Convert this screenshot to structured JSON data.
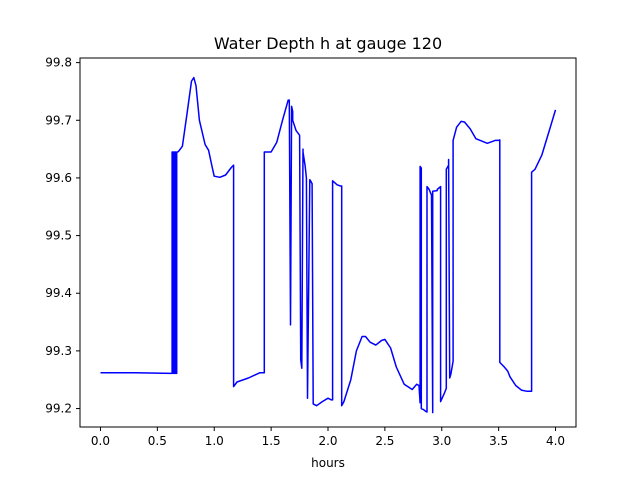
{
  "chart_data": {
    "type": "line",
    "title": "Water Depth h at gauge 120",
    "xlabel": "hours",
    "ylabel": "",
    "xlim": [
      -0.18,
      4.18
    ],
    "ylim": [
      99.168,
      99.808
    ],
    "xticks": [
      0.0,
      0.5,
      1.0,
      1.5,
      2.0,
      2.5,
      3.0,
      3.5,
      4.0
    ],
    "xtick_labels": [
      "0.0",
      "0.5",
      "1.0",
      "1.5",
      "2.0",
      "2.5",
      "3.0",
      "3.5",
      "4.0"
    ],
    "yticks": [
      99.2,
      99.3,
      99.4,
      99.5,
      99.6,
      99.7,
      99.8
    ],
    "ytick_labels": [
      "99.2",
      "99.3",
      "99.4",
      "99.5",
      "99.6",
      "99.7",
      "99.8"
    ],
    "grid": false,
    "series": [
      {
        "color": "#0000ff",
        "x": [
          0.0,
          0.3,
          0.62,
          0.63,
          0.63,
          0.64,
          0.64,
          0.65,
          0.65,
          0.66,
          0.66,
          0.67,
          0.67,
          0.68,
          0.69,
          0.72,
          0.76,
          0.8,
          0.82,
          0.84,
          0.87,
          0.92,
          0.95,
          0.98,
          1.0,
          1.05,
          1.1,
          1.15,
          1.17,
          1.17,
          1.2,
          1.3,
          1.4,
          1.44,
          1.44,
          1.5,
          1.55,
          1.6,
          1.65,
          1.66,
          1.67,
          1.67,
          1.68,
          1.69,
          1.69,
          1.72,
          1.75,
          1.76,
          1.76,
          1.77,
          1.78,
          1.78,
          1.8,
          1.81,
          1.82,
          1.82,
          1.84,
          1.85,
          1.86,
          1.87,
          1.9,
          1.95,
          2.0,
          2.03,
          2.04,
          2.04,
          2.08,
          2.11,
          2.12,
          2.12,
          2.14,
          2.2,
          2.25,
          2.3,
          2.33,
          2.37,
          2.42,
          2.47,
          2.5,
          2.55,
          2.6,
          2.67,
          2.74,
          2.78,
          2.8,
          2.81,
          2.81,
          2.82,
          2.82,
          2.84,
          2.86,
          2.87,
          2.87,
          2.89,
          2.91,
          2.92,
          2.92,
          2.96,
          2.96,
          2.99,
          2.99,
          3.02,
          3.04,
          3.04,
          3.06,
          3.06,
          3.07,
          3.08,
          3.1,
          3.1,
          3.13,
          3.17,
          3.2,
          3.25,
          3.3,
          3.4,
          3.47,
          3.5,
          3.51,
          3.51,
          3.55,
          3.58,
          3.6,
          3.65,
          3.7,
          3.75,
          3.79,
          3.79,
          3.82,
          3.88,
          3.95,
          4.0
        ],
        "y": [
          99.262,
          99.262,
          99.261,
          99.261,
          99.645,
          99.645,
          99.261,
          99.261,
          99.645,
          99.645,
          99.261,
          99.261,
          99.645,
          99.645,
          99.647,
          99.655,
          99.71,
          99.768,
          99.774,
          99.76,
          99.7,
          99.658,
          99.648,
          99.62,
          99.603,
          99.601,
          99.605,
          99.618,
          99.622,
          99.238,
          99.246,
          99.253,
          99.262,
          99.262,
          99.645,
          99.645,
          99.662,
          99.7,
          99.735,
          99.735,
          99.35,
          99.345,
          99.724,
          99.715,
          99.7,
          99.682,
          99.674,
          99.295,
          99.285,
          99.27,
          99.65,
          99.645,
          99.62,
          99.6,
          99.225,
          99.218,
          99.597,
          99.594,
          99.59,
          99.208,
          99.205,
          99.212,
          99.218,
          99.215,
          99.215,
          99.595,
          99.588,
          99.586,
          99.586,
          99.205,
          99.212,
          99.25,
          99.3,
          99.325,
          99.325,
          99.315,
          99.31,
          99.318,
          99.32,
          99.305,
          99.272,
          99.242,
          99.233,
          99.242,
          99.24,
          99.21,
          99.62,
          99.617,
          99.2,
          99.198,
          99.195,
          99.194,
          99.585,
          99.58,
          99.57,
          99.193,
          99.577,
          99.578,
          99.58,
          99.585,
          99.212,
          99.225,
          99.235,
          99.615,
          99.622,
          99.632,
          99.253,
          99.26,
          99.282,
          99.665,
          99.688,
          99.698,
          99.697,
          99.685,
          99.668,
          99.66,
          99.665,
          99.665,
          99.666,
          99.28,
          99.272,
          99.265,
          99.255,
          99.24,
          99.232,
          99.23,
          99.23,
          99.61,
          99.615,
          99.64,
          99.685,
          99.718
        ]
      }
    ]
  }
}
